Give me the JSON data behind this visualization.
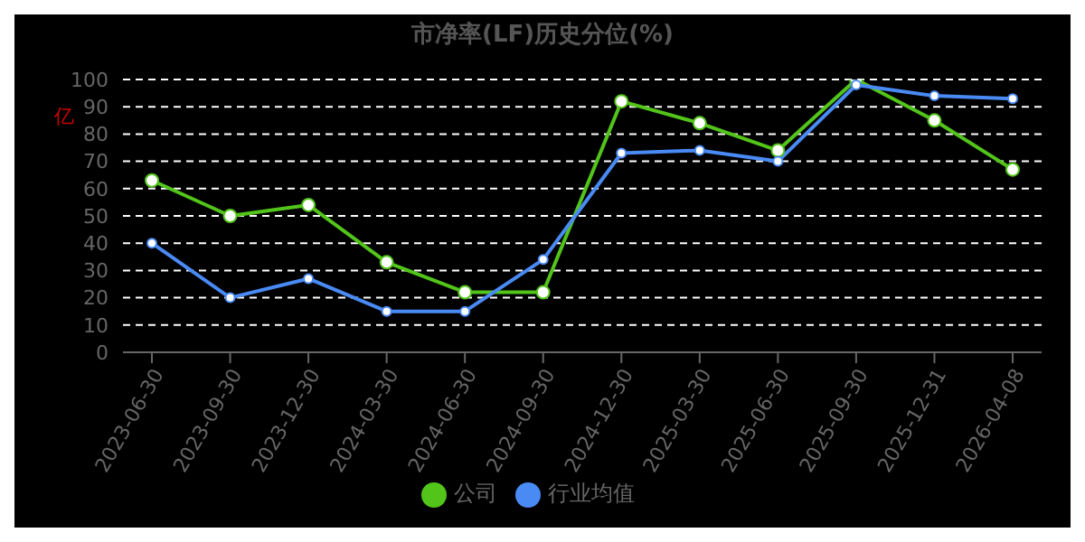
{
  "chart_data": {
    "type": "line",
    "title": "市净率(LF)历史分位(%)",
    "ylabel": "亿",
    "categories": [
      "2023-06-30",
      "2023-09-30",
      "2023-12-30",
      "2024-03-30",
      "2024-06-30",
      "2024-09-30",
      "2024-12-30",
      "2025-03-30",
      "2025-06-30",
      "2025-09-30",
      "2025-12-31",
      "2026-04-08"
    ],
    "series": [
      {
        "name": "公司",
        "color": "#52c41a",
        "values": [
          63,
          50,
          54,
          33,
          22,
          22,
          92,
          84,
          74,
          100,
          85,
          67
        ]
      },
      {
        "name": "行业均值",
        "color": "#4a8af4",
        "values": [
          40,
          20,
          27,
          15,
          15,
          34,
          73,
          74,
          70,
          98,
          94,
          93
        ]
      }
    ],
    "ylim": [
      0,
      100
    ],
    "yticks": [
      0,
      10,
      20,
      30,
      40,
      50,
      60,
      70,
      80,
      90,
      100
    ],
    "grid": "y",
    "legend": "bottom",
    "marker": "circle",
    "line_style": "solid"
  }
}
